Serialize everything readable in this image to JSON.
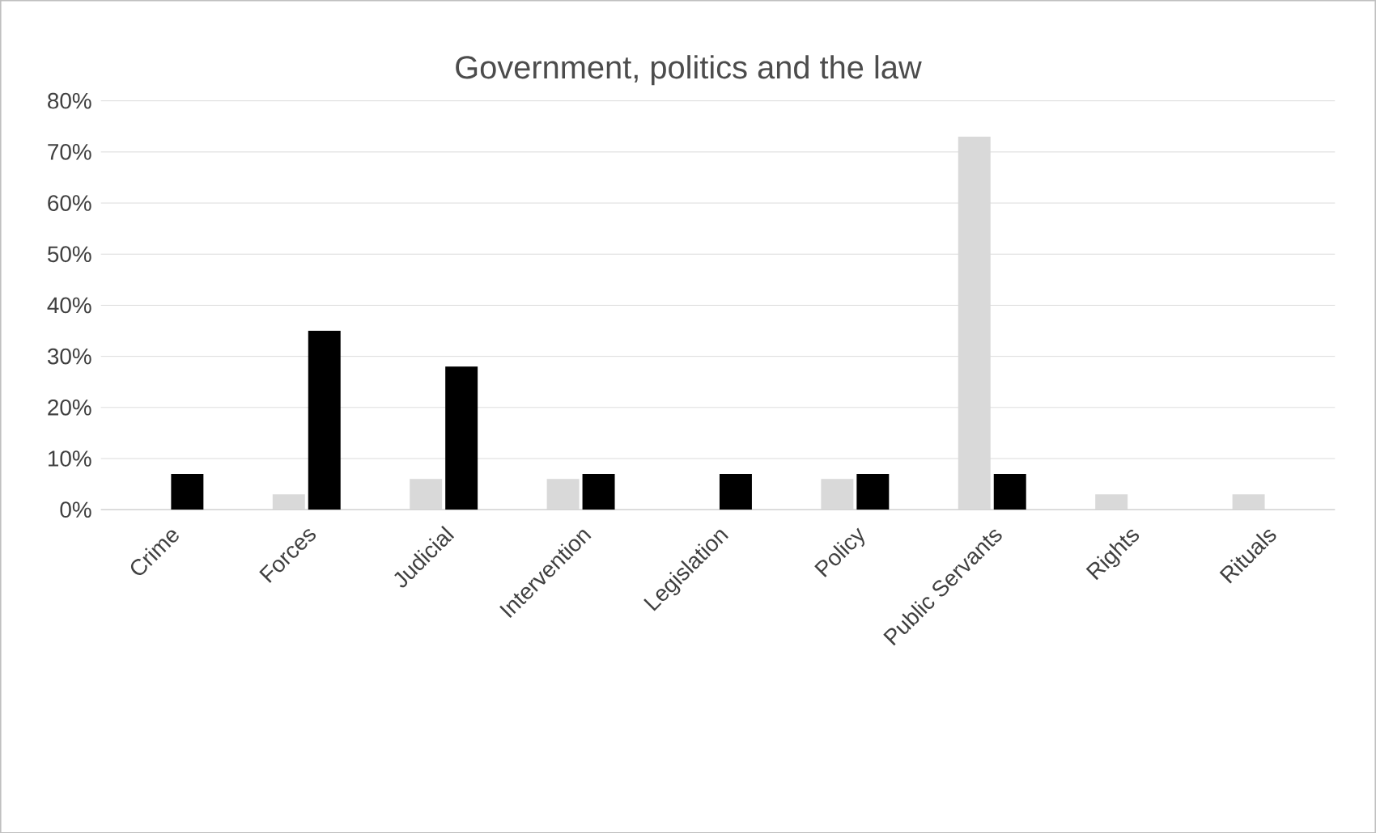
{
  "chart_data": {
    "type": "bar",
    "title": "Government, politics and the law",
    "categories": [
      "Crime",
      "Forces",
      "Judicial",
      "Intervention",
      "Legislation",
      "Policy",
      "Public Servants",
      "Rights",
      "Rituals"
    ],
    "series": [
      {
        "color": "#d9d9d9",
        "values": [
          0,
          3,
          6,
          6,
          0,
          6,
          73,
          3,
          3
        ]
      },
      {
        "color": "#000000",
        "values": [
          7,
          35,
          28,
          7,
          7,
          7,
          7,
          0,
          0
        ]
      }
    ],
    "ylim": [
      0,
      80
    ],
    "yticks": [
      {
        "value": 0,
        "label": "0%"
      },
      {
        "value": 10,
        "label": "10%"
      },
      {
        "value": 20,
        "label": "20%"
      },
      {
        "value": 30,
        "label": "30%"
      },
      {
        "value": 40,
        "label": "40%"
      },
      {
        "value": 50,
        "label": "50%"
      },
      {
        "value": 60,
        "label": "60%"
      },
      {
        "value": 70,
        "label": "70%"
      },
      {
        "value": 80,
        "label": "80%"
      }
    ],
    "grid": "y"
  }
}
